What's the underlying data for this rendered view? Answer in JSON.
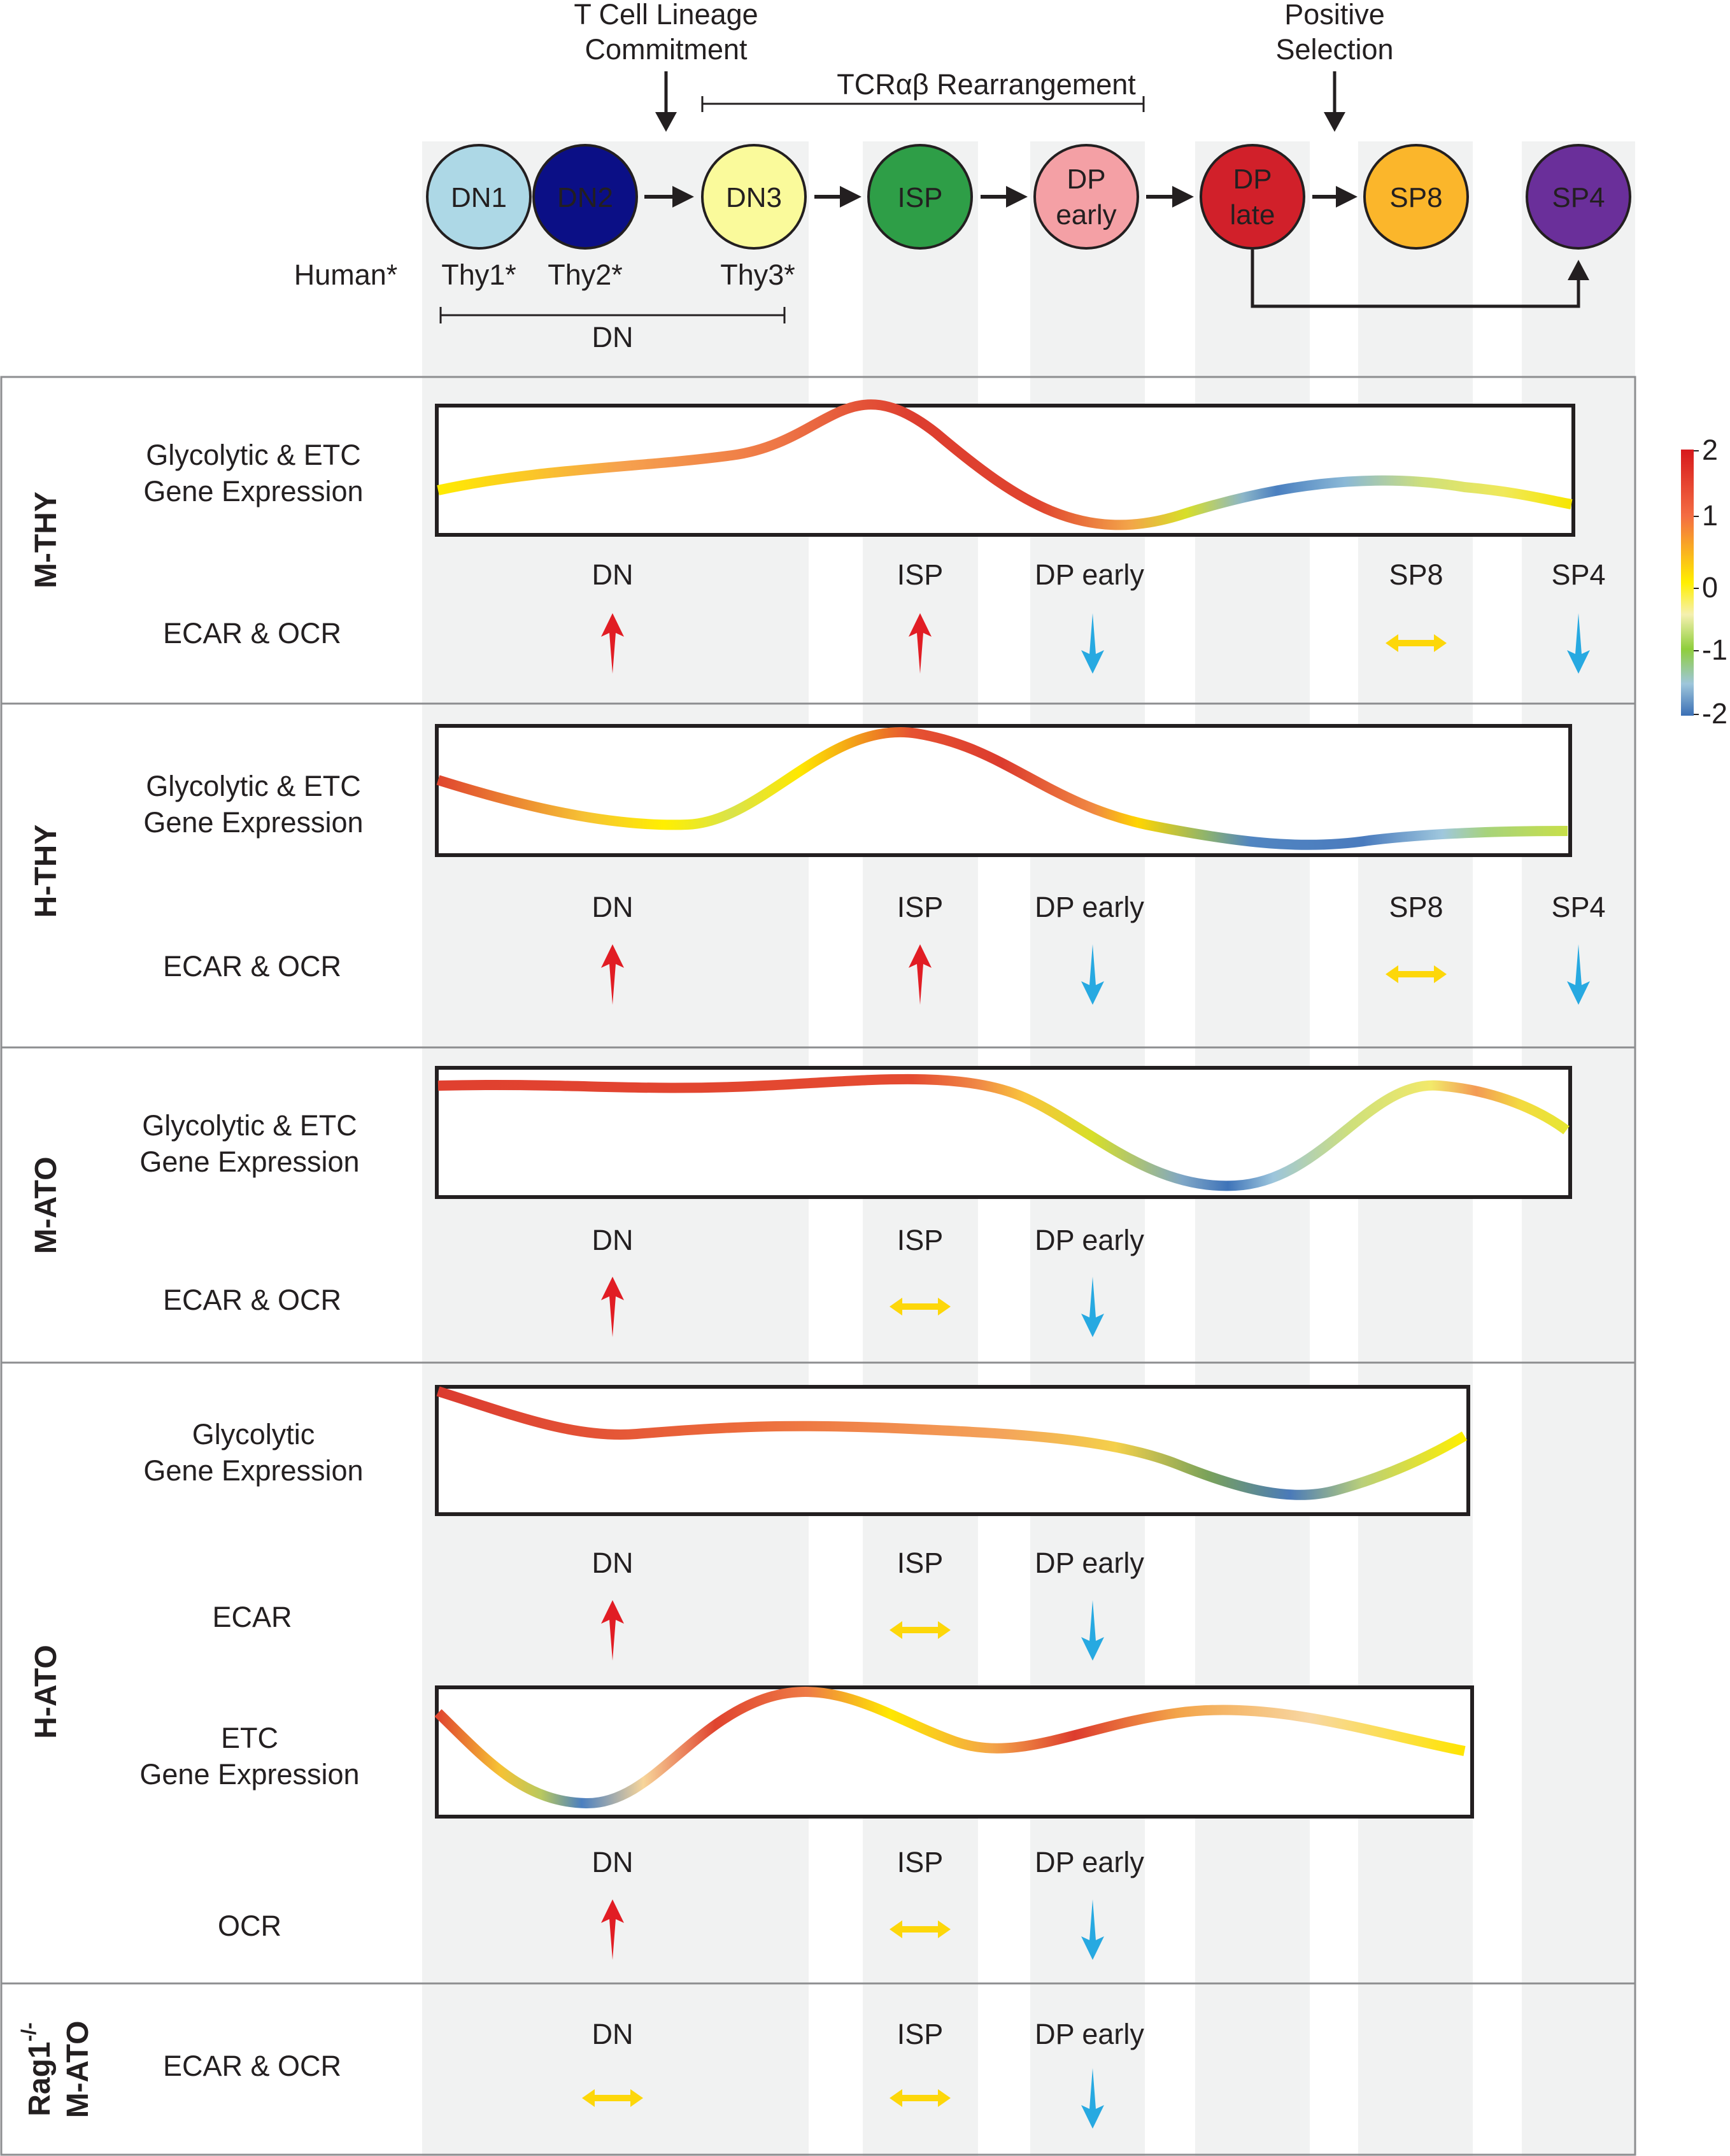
{
  "header": {
    "commitment_line1": "T Cell Lineage",
    "commitment_line2": "Commitment",
    "rearrangement": "TCRαβ  Rearrangement",
    "positive_line1": "Positive",
    "positive_line2": "Selection",
    "human_label": "Human*",
    "thy1": "Thy1*",
    "thy2": "Thy2*",
    "thy3": "Thy3*",
    "dn_span": "DN"
  },
  "stages": [
    {
      "line1": "DN1",
      "line2": "",
      "fill": "#add8e6",
      "text": "#231f20"
    },
    {
      "line1": "DN2",
      "line2": "",
      "fill": "#0b0f86",
      "text": "#ffffff"
    },
    {
      "line1": "DN3",
      "line2": "",
      "fill": "#fafa9b",
      "text": "#231f20"
    },
    {
      "line1": "ISP",
      "line2": "",
      "fill": "#2e9e47",
      "text": "#ffffff"
    },
    {
      "line1": "DP",
      "line2": "early",
      "fill": "#f4a0a5",
      "text": "#231f20"
    },
    {
      "line1": "DP",
      "line2": "late",
      "fill": "#d1202a",
      "text": "#ffffff"
    },
    {
      "line1": "SP8",
      "line2": "",
      "fill": "#fbb62b",
      "text": "#231f20"
    },
    {
      "line1": "SP4",
      "line2": "",
      "fill": "#6a2f9a",
      "text": "#ffffff"
    }
  ],
  "colorbar": {
    "ticks": [
      "2",
      "1",
      "0",
      "-1",
      "-2"
    ]
  },
  "colors": {
    "up": "#e11d24",
    "down": "#27a9e1",
    "flat": "#fdd70a",
    "stripe": "#f1f2f2"
  },
  "panels": [
    {
      "name": "M-THY",
      "gene_label": [
        "Glycolytic & ETC",
        "Gene Expression"
      ],
      "ecar_label": "ECAR & OCR",
      "stage_labels": [
        "DN",
        "ISP",
        "DP early",
        "SP8",
        "SP4"
      ],
      "directions": [
        "up",
        "up",
        "down",
        "flat",
        "down"
      ]
    },
    {
      "name": "H-THY",
      "gene_label": [
        "Glycolytic & ETC",
        "Gene Expression"
      ],
      "ecar_label": "ECAR & OCR",
      "stage_labels": [
        "DN",
        "ISP",
        "DP early",
        "SP8",
        "SP4"
      ],
      "directions": [
        "up",
        "up",
        "down",
        "flat",
        "down"
      ]
    },
    {
      "name": "M-ATO",
      "gene_label": [
        "Glycolytic & ETC",
        "Gene Expression"
      ],
      "ecar_label": "ECAR & OCR",
      "stage_labels": [
        "DN",
        "ISP",
        "DP early"
      ],
      "directions": [
        "up",
        "flat",
        "down"
      ]
    },
    {
      "name": "H-ATO",
      "gene_label": [
        "Glycolytic",
        "Gene Expression"
      ],
      "ecar_label": "ECAR",
      "stage_labels": [
        "DN",
        "ISP",
        "DP early"
      ],
      "directions": [
        "up",
        "flat",
        "down"
      ],
      "gene_label2": [
        "ETC",
        "Gene Expression"
      ],
      "ocr_label": "OCR",
      "stage_labels2": [
        "DN",
        "ISP",
        "DP early"
      ],
      "directions2": [
        "up",
        "flat",
        "down"
      ]
    },
    {
      "name_line1": "Rag1",
      "name_sup": "-/-",
      "name_line2": "M-ATO",
      "ecar_label": "ECAR & OCR",
      "stage_labels": [
        "DN",
        "ISP",
        "DP early"
      ],
      "directions": [
        "flat",
        "flat",
        "down"
      ]
    }
  ]
}
